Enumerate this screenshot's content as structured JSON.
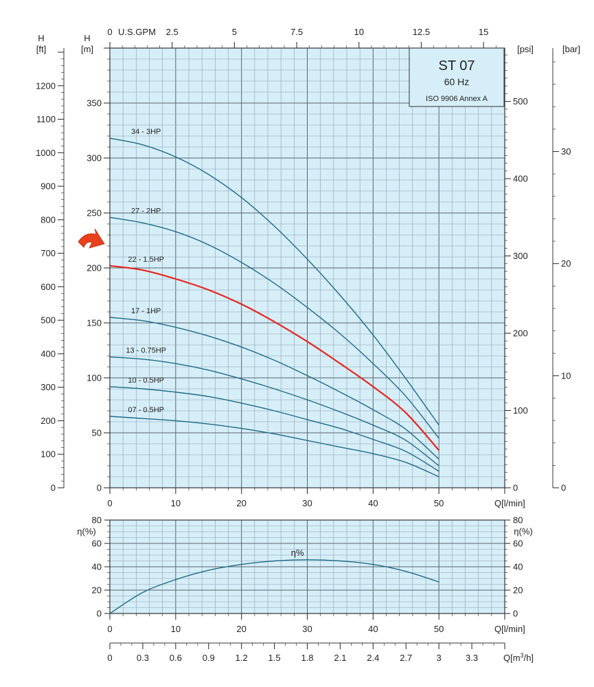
{
  "colors": {
    "plot_bg": "#d6eef8",
    "grid_minor": "#8aa0ad",
    "grid_major": "#56646e",
    "curve": "#1e6a87",
    "highlight": "#e8241c",
    "arrow": "#e8401c",
    "axis": "#333333"
  },
  "labels": {
    "top_unit": "U.S.GPM",
    "h_ft_line1": "H",
    "h_ft_line2": "[ft]",
    "h_m_line1": "H",
    "h_m_line2": "[m]",
    "psi": "[psi]",
    "bar": "[bar]",
    "q_lmin": "Q[l/min]",
    "q_lmin_eff": "Q[l/min]",
    "q_m3h_prefix": "Q[m",
    "q_m3h_sup": "3",
    "q_m3h_suffix": "/h]",
    "eta_left": "η(%)",
    "eta_right": "η(%)",
    "eta_curve": "η%"
  },
  "title_box": {
    "model": "ST 07",
    "freq": "60 Hz",
    "standard": "ISO 9906 Annex A"
  },
  "ticks": {
    "gpm": [
      "0",
      "2.5",
      "5",
      "7.5",
      "10",
      "12.5",
      "15"
    ],
    "q_main": [
      "0",
      "10",
      "20",
      "30",
      "40",
      "50"
    ],
    "q_eff": [
      "0",
      "10",
      "20",
      "30",
      "40",
      "50"
    ],
    "h_m": [
      "0",
      "50",
      "100",
      "150",
      "200",
      "250",
      "300",
      "350"
    ],
    "h_ft": [
      "0",
      "100",
      "200",
      "300",
      "400",
      "500",
      "600",
      "700",
      "800",
      "900",
      "1000",
      "1100",
      "1200"
    ],
    "psi": [
      "0",
      "100",
      "200",
      "300",
      "400",
      "500"
    ],
    "bar": [
      "0",
      "10",
      "20",
      "30"
    ],
    "eta": [
      "0",
      "20",
      "40",
      "60",
      "80"
    ],
    "m3h": [
      "0",
      "0.3",
      "0.6",
      "0.9",
      "1.2",
      "1.5",
      "1.8",
      "2.1",
      "2.4",
      "2.7",
      "3",
      "3.3"
    ]
  },
  "chart_data": [
    {
      "type": "line",
      "xlabel": "Q[l/min]",
      "ylabel": "H [m]",
      "xlim": [
        0,
        60
      ],
      "ylim": [
        0,
        400
      ],
      "grid": true,
      "highlighted_series": "22 - 1.5HP",
      "series": [
        {
          "name": "34 - 3HP",
          "x": [
            0,
            5,
            10,
            15,
            20,
            25,
            30,
            35,
            40,
            45,
            50
          ],
          "values": [
            318,
            312,
            301,
            285,
            264,
            238,
            208,
            175,
            139,
            99,
            57
          ]
        },
        {
          "name": "27 - 2HP",
          "x": [
            0,
            5,
            10,
            15,
            20,
            25,
            30,
            35,
            40,
            45,
            50
          ],
          "values": [
            246,
            241,
            233,
            221,
            205,
            186,
            164,
            140,
            113,
            83,
            45
          ]
        },
        {
          "name": "22 - 1.5HP",
          "x": [
            0,
            5,
            10,
            15,
            20,
            25,
            30,
            35,
            40,
            45,
            50
          ],
          "values": [
            202,
            198,
            190,
            180,
            167,
            151,
            133,
            113,
            92,
            68,
            34
          ]
        },
        {
          "name": "17 - 1HP",
          "x": [
            0,
            5,
            10,
            15,
            20,
            25,
            30,
            35,
            40,
            45,
            50
          ],
          "values": [
            155,
            152,
            146,
            138,
            128,
            116,
            102,
            87,
            71,
            53,
            26
          ]
        },
        {
          "name": "13 - 0.75HP",
          "x": [
            0,
            5,
            10,
            15,
            20,
            25,
            30,
            35,
            40,
            45,
            50
          ],
          "values": [
            119,
            117,
            113,
            107,
            99,
            90,
            80,
            69,
            57,
            43,
            20
          ]
        },
        {
          "name": "10 - 0.5HP",
          "x": [
            0,
            5,
            10,
            15,
            20,
            25,
            30,
            35,
            40,
            45,
            50
          ],
          "values": [
            92,
            90,
            87,
            83,
            77,
            70,
            62,
            54,
            44,
            33,
            15
          ]
        },
        {
          "name": "07 - 0.5HP",
          "x": [
            0,
            5,
            10,
            15,
            20,
            25,
            30,
            35,
            40,
            45,
            50
          ],
          "values": [
            65,
            63,
            61,
            58,
            54,
            49,
            43,
            37,
            31,
            23,
            10
          ]
        }
      ]
    },
    {
      "type": "line",
      "xlabel": "Q[l/min]",
      "ylabel": "η(%)",
      "xlim": [
        0,
        60
      ],
      "ylim": [
        0,
        80
      ],
      "grid": true,
      "series": [
        {
          "name": "η%",
          "x": [
            0,
            5,
            10,
            15,
            20,
            25,
            30,
            35,
            40,
            45,
            50
          ],
          "values": [
            0,
            18,
            29,
            37,
            42,
            45,
            46,
            45,
            42,
            36,
            27
          ]
        }
      ]
    }
  ]
}
